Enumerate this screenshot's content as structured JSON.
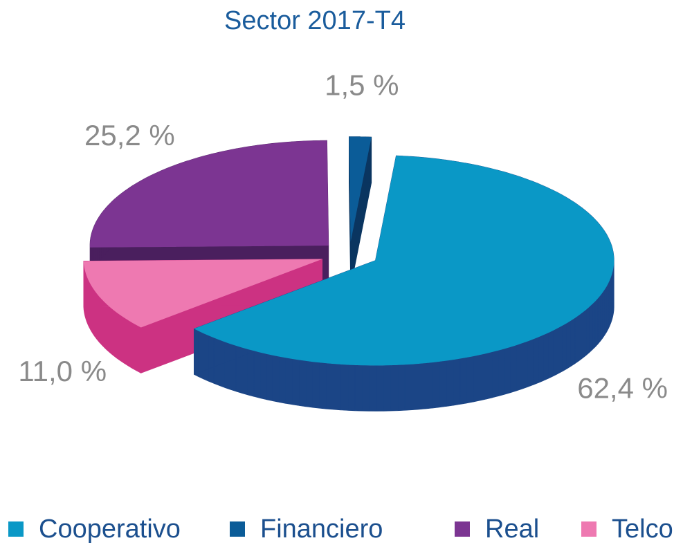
{
  "chart_data": {
    "type": "pie3d",
    "title": "Sector 2017-T4",
    "categories": [
      "Cooperativo",
      "Financiero",
      "Real",
      "Telco"
    ],
    "values": [
      62.4,
      1.5,
      25.2,
      11.0
    ],
    "value_labels": [
      "62,4 %",
      "1,5 %",
      "25,2 %",
      "11,0 %"
    ],
    "colors": [
      "#0a98c6",
      "#0b5c98",
      "#7c3592",
      "#ee79b1"
    ],
    "side_colors": [
      "#1b4586",
      "#0a3560",
      "#4a1f5e",
      "#cc3282"
    ],
    "legend": "bottom"
  }
}
